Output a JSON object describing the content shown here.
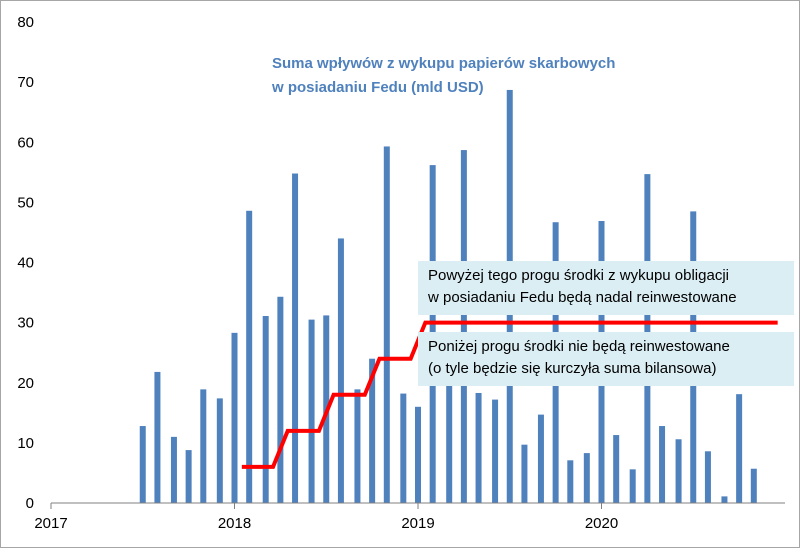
{
  "chart_data": {
    "type": "bar",
    "title_lines": [
      "Suma wpływów z wykupu papierów skarbowych",
      "w posiadaniu Fedu (mld USD)"
    ],
    "ylim": [
      0,
      80
    ],
    "yticks": [
      "0",
      "10",
      "20",
      "30",
      "40",
      "50",
      "60",
      "70",
      "80"
    ],
    "xlim": [
      2017,
      2021
    ],
    "xticks": [
      {
        "value": 2017,
        "label": "2017"
      },
      {
        "value": 2018,
        "label": "2018"
      },
      {
        "value": 2019,
        "label": "2019"
      },
      {
        "value": 2020,
        "label": "2020"
      }
    ],
    "bar_color": "#4f81bd",
    "series": [
      {
        "values": [
          {
            "x": 2017.5,
            "y": 12.8
          },
          {
            "x": 2017.58,
            "y": 21.8
          },
          {
            "x": 2017.67,
            "y": 11.0
          },
          {
            "x": 2017.75,
            "y": 8.8
          },
          {
            "x": 2017.83,
            "y": 18.9
          },
          {
            "x": 2017.92,
            "y": 17.4
          },
          {
            "x": 2018.0,
            "y": 28.3
          },
          {
            "x": 2018.08,
            "y": 48.6
          },
          {
            "x": 2018.17,
            "y": 31.1
          },
          {
            "x": 2018.25,
            "y": 34.3
          },
          {
            "x": 2018.33,
            "y": 54.8
          },
          {
            "x": 2018.42,
            "y": 30.5
          },
          {
            "x": 2018.5,
            "y": 31.2
          },
          {
            "x": 2018.58,
            "y": 44.0
          },
          {
            "x": 2018.67,
            "y": 18.9
          },
          {
            "x": 2018.75,
            "y": 24.0
          },
          {
            "x": 2018.83,
            "y": 59.3
          },
          {
            "x": 2018.92,
            "y": 18.2
          },
          {
            "x": 2019.0,
            "y": 16.0
          },
          {
            "x": 2019.08,
            "y": 56.2
          },
          {
            "x": 2019.17,
            "y": 20.0
          },
          {
            "x": 2019.25,
            "y": 58.7
          },
          {
            "x": 2019.33,
            "y": 18.3
          },
          {
            "x": 2019.42,
            "y": 17.2
          },
          {
            "x": 2019.5,
            "y": 68.7
          },
          {
            "x": 2019.58,
            "y": 9.7
          },
          {
            "x": 2019.67,
            "y": 14.7
          },
          {
            "x": 2019.75,
            "y": 46.7
          },
          {
            "x": 2019.83,
            "y": 7.1
          },
          {
            "x": 2019.92,
            "y": 8.3
          },
          {
            "x": 2020.0,
            "y": 46.9
          },
          {
            "x": 2020.08,
            "y": 11.3
          },
          {
            "x": 2020.17,
            "y": 5.6
          },
          {
            "x": 2020.25,
            "y": 54.7
          },
          {
            "x": 2020.33,
            "y": 12.8
          },
          {
            "x": 2020.42,
            "y": 10.6
          },
          {
            "x": 2020.5,
            "y": 48.5
          },
          {
            "x": 2020.58,
            "y": 8.6
          },
          {
            "x": 2020.67,
            "y": 1.1
          },
          {
            "x": 2020.75,
            "y": 18.1
          },
          {
            "x": 2020.83,
            "y": 5.7
          }
        ]
      }
    ],
    "threshold_line": {
      "color": "#ff0000",
      "points": [
        [
          2018.04,
          6
        ],
        [
          2018.21,
          6
        ],
        [
          2018.29,
          12
        ],
        [
          2018.46,
          12
        ],
        [
          2018.54,
          18
        ],
        [
          2018.71,
          18
        ],
        [
          2018.79,
          24
        ],
        [
          2018.96,
          24
        ],
        [
          2019.04,
          30
        ],
        [
          2020.96,
          30
        ]
      ]
    },
    "annotations": {
      "above": [
        "Powyżej tego progu środki z wykupu obligacji",
        "w posiadaniu Fedu będą nadal reinwestowane"
      ],
      "below": [
        "Poniżej progu środki nie będą reinwestowane",
        "(o tyle będzie się kurczyła suma bilansowa)"
      ]
    }
  }
}
